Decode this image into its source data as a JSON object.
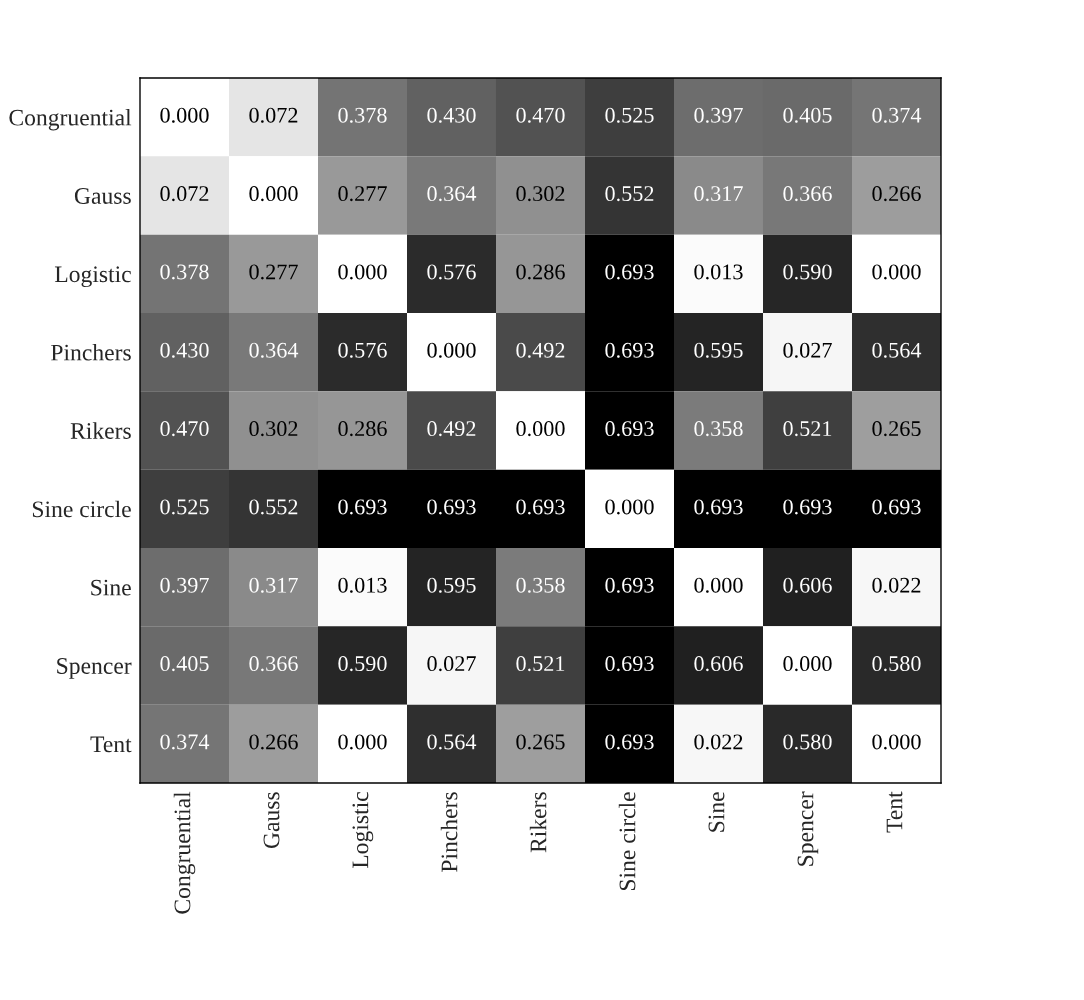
{
  "chart_data": {
    "type": "heatmap",
    "categories": [
      "Congruential",
      "Gauss",
      "Logistic",
      "Pinchers",
      "Rikers",
      "Sine circle",
      "Sine",
      "Spencer",
      "Tent"
    ],
    "y_categories": [
      "Congruential",
      "Gauss",
      "Logistic",
      "Pinchers",
      "Rikers",
      "Sine circle",
      "Sine",
      "Spencer",
      "Tent"
    ],
    "cells": [
      [
        0.0,
        0.072,
        0.378,
        0.43,
        0.47,
        0.525,
        0.397,
        0.405,
        0.374
      ],
      [
        0.072,
        0.0,
        0.277,
        0.364,
        0.302,
        0.552,
        0.317,
        0.366,
        0.266
      ],
      [
        0.378,
        0.277,
        0.0,
        0.576,
        0.286,
        0.693,
        0.013,
        0.59,
        0.0
      ],
      [
        0.43,
        0.364,
        0.576,
        0.0,
        0.492,
        0.693,
        0.595,
        0.027,
        0.564
      ],
      [
        0.47,
        0.302,
        0.286,
        0.492,
        0.0,
        0.693,
        0.358,
        0.521,
        0.265
      ],
      [
        0.525,
        0.552,
        0.693,
        0.693,
        0.693,
        0.0,
        0.693,
        0.693,
        0.693
      ],
      [
        0.397,
        0.317,
        0.013,
        0.595,
        0.358,
        0.693,
        0.0,
        0.606,
        0.022
      ],
      [
        0.405,
        0.366,
        0.59,
        0.027,
        0.521,
        0.693,
        0.606,
        0.0,
        0.58
      ],
      [
        0.374,
        0.266,
        0.0,
        0.564,
        0.265,
        0.693,
        0.022,
        0.58,
        0.0
      ]
    ],
    "cell_labels": [
      [
        "0.000",
        "0.072",
        "0.378",
        "0.430",
        "0.470",
        "0.525",
        "0.397",
        "0.405",
        "0.374"
      ],
      [
        "0.072",
        "0.000",
        "0.277",
        "0.364",
        "0.302",
        "0.552",
        "0.317",
        "0.366",
        "0.266"
      ],
      [
        "0.378",
        "0.277",
        "0.000",
        "0.576",
        "0.286",
        "0.693",
        "0.013",
        "0.590",
        "0.000"
      ],
      [
        "0.430",
        "0.364",
        "0.576",
        "0.000",
        "0.492",
        "0.693",
        "0.595",
        "0.027",
        "0.564"
      ],
      [
        "0.470",
        "0.302",
        "0.286",
        "0.492",
        "0.000",
        "0.693",
        "0.358",
        "0.521",
        "0.265"
      ],
      [
        "0.525",
        "0.552",
        "0.693",
        "0.693",
        "0.693",
        "0.000",
        "0.693",
        "0.693",
        "0.693"
      ],
      [
        "0.397",
        "0.317",
        "0.013",
        "0.595",
        "0.358",
        "0.693",
        "0.000",
        "0.606",
        "0.022"
      ],
      [
        "0.405",
        "0.366",
        "0.590",
        "0.027",
        "0.521",
        "0.693",
        "0.606",
        "0.000",
        "0.580"
      ],
      [
        "0.374",
        "0.266",
        "0.000",
        "0.564",
        "0.265",
        "0.693",
        "0.022",
        "0.580",
        "0.000"
      ]
    ]
  }
}
